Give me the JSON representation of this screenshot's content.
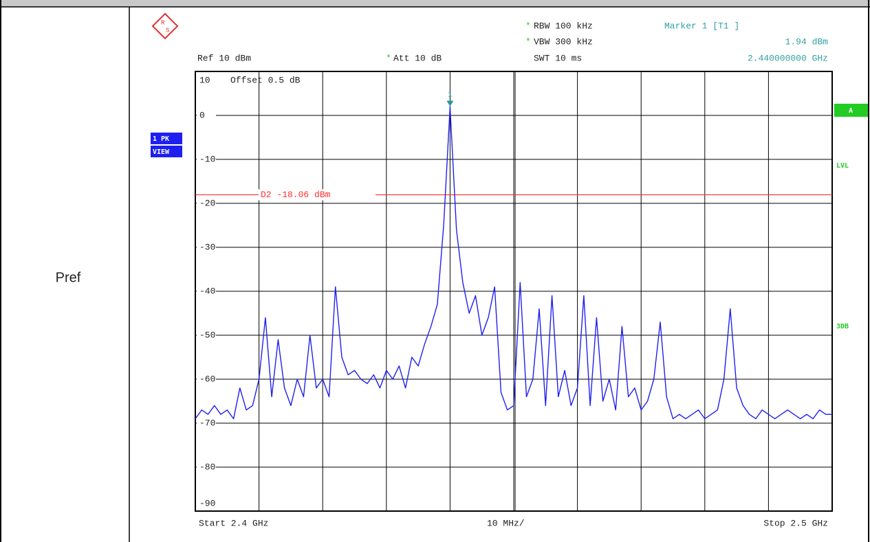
{
  "row_label": "Pref",
  "chart_data": {
    "type": "line",
    "logo_r": "R",
    "logo_s": "S",
    "setting_flag": "*",
    "ref": "Ref  10 dBm",
    "att": "Att   10 dB",
    "rbw": "RBW 100 kHz",
    "vbw": "VBW 300 kHz",
    "swt": "SWT 10 ms",
    "marker_title": "Marker 1 [T1 ]",
    "marker_level": "1.94 dBm",
    "marker_freq": "2.440000000 GHz",
    "offset": "Offset   0.5 dB",
    "trace_mode": "VIEW",
    "side_labels": [
      "A",
      "LVL",
      "3DB"
    ],
    "start_label": "Start  2.4 GHz",
    "span_label": "10 MHz/",
    "stop_label": "Stop  2.5 GHz",
    "xlim": [
      2.4,
      2.5
    ],
    "ylim": [
      -90,
      10
    ],
    "xticks": [
      2.4,
      2.41,
      2.42,
      2.43,
      2.44,
      2.45,
      2.46,
      2.47,
      2.48,
      2.49,
      2.5
    ],
    "yticks": [
      -90,
      -80,
      -70,
      -60,
      -50,
      -40,
      -30,
      -20,
      -10,
      0,
      10
    ],
    "grid": true,
    "display_line": {
      "value": -18.06,
      "label": "D2 -18.06 dBm",
      "color": "#ff3030"
    },
    "marker": {
      "label": "1",
      "x": 2.44,
      "y": 1.94,
      "color": "#229999"
    },
    "x": [
      2.4,
      2.401,
      2.402,
      2.403,
      2.404,
      2.405,
      2.406,
      2.407,
      2.408,
      2.409,
      2.41,
      2.411,
      2.412,
      2.413,
      2.414,
      2.415,
      2.416,
      2.417,
      2.418,
      2.419,
      2.42,
      2.421,
      2.422,
      2.423,
      2.424,
      2.425,
      2.426,
      2.427,
      2.428,
      2.429,
      2.43,
      2.431,
      2.432,
      2.433,
      2.434,
      2.435,
      2.436,
      2.437,
      2.438,
      2.439,
      2.44,
      2.441,
      2.442,
      2.443,
      2.444,
      2.445,
      2.446,
      2.447,
      2.448,
      2.449,
      2.45,
      2.451,
      2.452,
      2.453,
      2.454,
      2.455,
      2.456,
      2.457,
      2.458,
      2.459,
      2.46,
      2.461,
      2.462,
      2.463,
      2.464,
      2.465,
      2.466,
      2.467,
      2.468,
      2.469,
      2.47,
      2.471,
      2.472,
      2.473,
      2.474,
      2.475,
      2.476,
      2.477,
      2.478,
      2.479,
      2.48,
      2.481,
      2.482,
      2.483,
      2.484,
      2.485,
      2.486,
      2.487,
      2.488,
      2.489,
      2.49,
      2.491,
      2.492,
      2.493,
      2.494,
      2.495,
      2.496,
      2.497,
      2.498,
      2.499,
      2.5
    ],
    "series": [
      {
        "name": "1 PK",
        "color": "#1f1ff0",
        "values": [
          -69,
          -67,
          -68,
          -66,
          -68,
          -67,
          -69,
          -62,
          -67,
          -66,
          -60,
          -46,
          -64,
          -51,
          -62,
          -66,
          -60,
          -64,
          -50,
          -62,
          -60,
          -64,
          -39,
          -55,
          -59,
          -58,
          -60,
          -61,
          -59,
          -62,
          -58,
          -60,
          -57,
          -62,
          -55,
          -57,
          -52,
          -48,
          -43,
          -25,
          1.94,
          -26,
          -38,
          -45,
          -41,
          -50,
          -46,
          -39,
          -63,
          -67,
          -66,
          -38,
          -64,
          -60,
          -44,
          -66,
          -41,
          -64,
          -58,
          -66,
          -62,
          -41,
          -66,
          -46,
          -65,
          -60,
          -67,
          -48,
          -64,
          -62,
          -67,
          -65,
          -60,
          -47,
          -64,
          -69,
          -68,
          -69,
          -68,
          -67,
          -69,
          -68,
          -67,
          -60,
          -44,
          -62,
          -66,
          -68,
          -69,
          -67,
          -68,
          -69,
          -68,
          -67,
          -68,
          -69,
          -68,
          -69,
          -67,
          -68,
          -68
        ]
      }
    ]
  }
}
